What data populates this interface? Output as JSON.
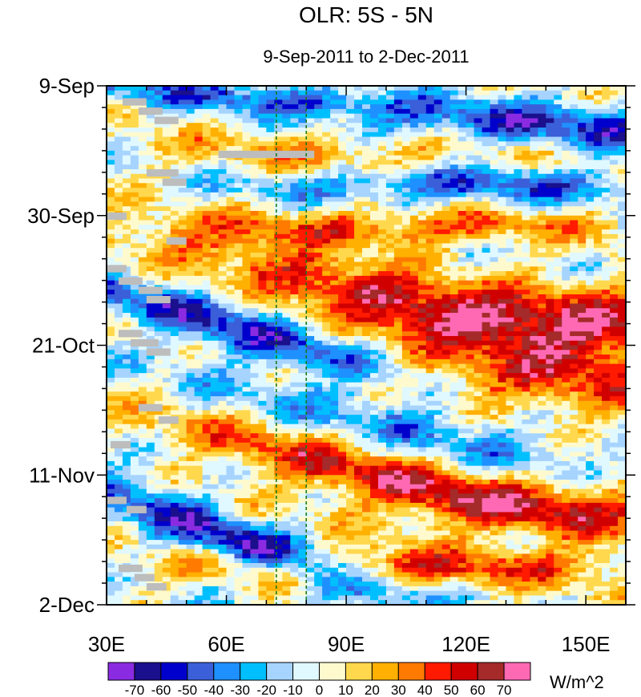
{
  "chart_data": {
    "type": "heatmap",
    "title": "OLR: 5S - 5N",
    "subtitle": "9-Sep-2011 to 2-Dec-2011",
    "xlabel": "",
    "ylabel": "",
    "x_range": [
      30,
      160
    ],
    "x_ticks": [
      {
        "value": 30,
        "label": "30E"
      },
      {
        "value": 60,
        "label": "60E"
      },
      {
        "value": 90,
        "label": "90E"
      },
      {
        "value": 120,
        "label": "120E"
      },
      {
        "value": 150,
        "label": "150E"
      }
    ],
    "y_range_days": [
      0,
      84
    ],
    "y_ticks": [
      {
        "day": 0,
        "label": "9-Sep"
      },
      {
        "day": 21,
        "label": "30-Sep"
      },
      {
        "day": 42,
        "label": "21-Oct"
      },
      {
        "day": 63,
        "label": "11-Nov"
      },
      {
        "day": 84,
        "label": "2-Dec"
      }
    ],
    "reference_lines_lon": [
      72.5,
      80
    ],
    "reference_line_color": "#1a7a1a",
    "colorbar": {
      "units": "W/m^2",
      "levels": [
        "-70",
        "-60",
        "-50",
        "-40",
        "-30",
        "-20",
        "-10",
        "0",
        "10",
        "20",
        "30",
        "40",
        "50",
        "60",
        "70"
      ],
      "colors": [
        "#8a2be2",
        "#1a0f8c",
        "#0000cd",
        "#3a5fd9",
        "#1e90ff",
        "#00bfff",
        "#a6d4ff",
        "#e0f8ff",
        "#fffacd",
        "#ffd84d",
        "#ffb000",
        "#ff7a00",
        "#ff1a00",
        "#d10000",
        "#a52a2a",
        "#ff69b4"
      ]
    },
    "bands": [
      {
        "dir": 1,
        "day": 2,
        "lon": 70,
        "drift": 0.05,
        "width": 2.5,
        "amp": -45
      },
      {
        "dir": 1,
        "day": 10,
        "lon": 100,
        "drift": 0.0,
        "width": 4,
        "amp": 35
      },
      {
        "dir": 1,
        "day": 7,
        "lon": 140,
        "drift": 0.0,
        "width": 4,
        "amp": -55
      },
      {
        "dir": 1,
        "day": 16,
        "lon": 120,
        "drift": 0.0,
        "width": 3,
        "amp": -45
      },
      {
        "dir": 1,
        "day": 23,
        "lon": 100,
        "drift": 0.0,
        "width": 3,
        "amp": 40
      },
      {
        "dir": 1,
        "day": 33,
        "lon": 95,
        "drift": 0.15,
        "width": 4,
        "amp": 55
      },
      {
        "dir": 1,
        "day": 38,
        "lon": 150,
        "drift": 0.0,
        "width": 6,
        "amp": 50
      },
      {
        "dir": 1,
        "day": 40,
        "lon": 65,
        "drift": 0.2,
        "width": 4,
        "amp": -55
      },
      {
        "dir": 1,
        "day": 48,
        "lon": 140,
        "drift": 0.0,
        "width": 6,
        "amp": 40
      },
      {
        "dir": 1,
        "day": 54,
        "lon": 100,
        "drift": 0.15,
        "width": 4,
        "amp": -35
      },
      {
        "dir": 1,
        "day": 63,
        "lon": 95,
        "drift": 0.15,
        "width": 4,
        "amp": 50
      },
      {
        "dir": 1,
        "day": 68,
        "lon": 150,
        "drift": 0.0,
        "width": 5,
        "amp": 35
      },
      {
        "dir": 1,
        "day": 74,
        "lon": 65,
        "drift": 0.25,
        "width": 4,
        "amp": -60
      },
      {
        "dir": 1,
        "day": 78,
        "lon": 110,
        "drift": 0.0,
        "width": 3,
        "amp": 45
      }
    ],
    "missing_cells": [
      {
        "day": 2,
        "lon": 34,
        "w": 6,
        "h": 1.2
      },
      {
        "day": 3.5,
        "lon": 38,
        "w": 6,
        "h": 1.2
      },
      {
        "day": 5,
        "lon": 42,
        "w": 6,
        "h": 1.2
      },
      {
        "day": 10.5,
        "lon": 58,
        "w": 24,
        "h": 1.2
      },
      {
        "day": 13.5,
        "lon": 40,
        "w": 8,
        "h": 1.2
      },
      {
        "day": 15,
        "lon": 44,
        "w": 6,
        "h": 1.2
      },
      {
        "day": 20.5,
        "lon": 30,
        "w": 5,
        "h": 1.2
      },
      {
        "day": 24.5,
        "lon": 45,
        "w": 5,
        "h": 1.2
      },
      {
        "day": 29,
        "lon": 30,
        "w": 5,
        "h": 1.2
      },
      {
        "day": 31,
        "lon": 33,
        "w": 6,
        "h": 1.2
      },
      {
        "day": 32.5,
        "lon": 38,
        "w": 6,
        "h": 1.2
      },
      {
        "day": 34,
        "lon": 40,
        "w": 6,
        "h": 1.2
      },
      {
        "day": 39.5,
        "lon": 33,
        "w": 6,
        "h": 1.2
      },
      {
        "day": 41,
        "lon": 36,
        "w": 7,
        "h": 1.2
      },
      {
        "day": 42.5,
        "lon": 40,
        "w": 6,
        "h": 1.2
      },
      {
        "day": 51.5,
        "lon": 38,
        "w": 6,
        "h": 1.2
      },
      {
        "day": 53.5,
        "lon": 43,
        "w": 5,
        "h": 1.2
      },
      {
        "day": 57.5,
        "lon": 31,
        "w": 5,
        "h": 1.2
      },
      {
        "day": 66.5,
        "lon": 30,
        "w": 5,
        "h": 1.2
      },
      {
        "day": 68,
        "lon": 35,
        "w": 5,
        "h": 1.2
      },
      {
        "day": 77.5,
        "lon": 33,
        "w": 6,
        "h": 1.2
      },
      {
        "day": 79,
        "lon": 37,
        "w": 5,
        "h": 1.2
      },
      {
        "day": 80.5,
        "lon": 40,
        "w": 5,
        "h": 1.2
      }
    ]
  }
}
